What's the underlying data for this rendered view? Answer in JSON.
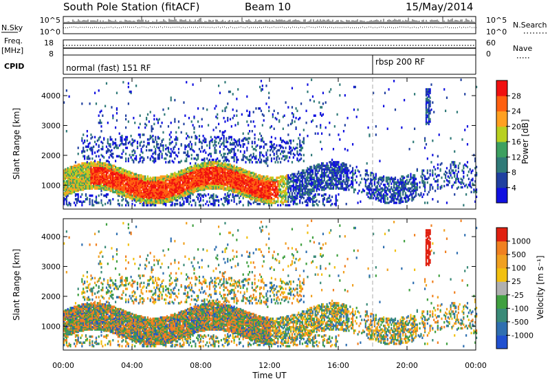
{
  "header": {
    "station": "South Pole Station (fitACF)",
    "beam": "Beam 10",
    "date": "15/May/2014"
  },
  "strips": {
    "nsky_label": "N.Sky",
    "nsky_ticks": [
      "10^5",
      "10^0"
    ],
    "nsearch_label": "N.Search",
    "nsearch_ticks": [
      "10^5",
      "10^0"
    ],
    "freq_label": "Freq.",
    "freq_unit": "[MHz]",
    "freq_ticks": [
      "18",
      "8"
    ],
    "nave_label": "Nave",
    "nave_ticks": [
      "60",
      "0"
    ],
    "cpid_label": "CPID",
    "cpid_segments": [
      {
        "label": "normal (fast) 151 RF",
        "start_hour": 0
      },
      {
        "label": "rbsp 200 RF",
        "start_hour": 18
      }
    ]
  },
  "colors": {
    "power_scale": [
      "#1010e0",
      "#2040a0",
      "#307a78",
      "#3da060",
      "#b8d020",
      "#ffa020",
      "#ff6010",
      "#f01010"
    ],
    "velocity_scale": [
      "#2050d0",
      "#2f6fb0",
      "#3a8a78",
      "#40a040",
      "#b0b0b0",
      "#f2c010",
      "#f0a020",
      "#f08020",
      "#e02010"
    ]
  },
  "chart_data": [
    {
      "type": "heatmap",
      "name": "power",
      "ylabel": "Slant Range [km]",
      "x_range_hours": [
        0,
        24
      ],
      "ylim": [
        200,
        4600
      ],
      "yticks": [
        1000,
        2000,
        3000,
        4000
      ],
      "colorbar": {
        "label": "Power [dB]",
        "ticks": [
          "4",
          "8",
          "12",
          "16",
          "20",
          "24",
          "28"
        ],
        "range": [
          0,
          32
        ]
      }
    },
    {
      "type": "heatmap",
      "name": "velocity",
      "xlabel": "Time UT",
      "xticks": [
        "00:00",
        "04:00",
        "08:00",
        "12:00",
        "16:00",
        "20:00",
        "00:00"
      ],
      "ylabel": "Slant Range [km]",
      "x_range_hours": [
        0,
        24
      ],
      "ylim": [
        200,
        4600
      ],
      "yticks": [
        1000,
        2000,
        3000,
        4000
      ],
      "colorbar": {
        "label": "Velocity [m s⁻¹]",
        "ticks": [
          "-1000",
          "-500",
          "-100",
          "-25",
          "25",
          "100",
          "500",
          "1000"
        ]
      }
    }
  ]
}
